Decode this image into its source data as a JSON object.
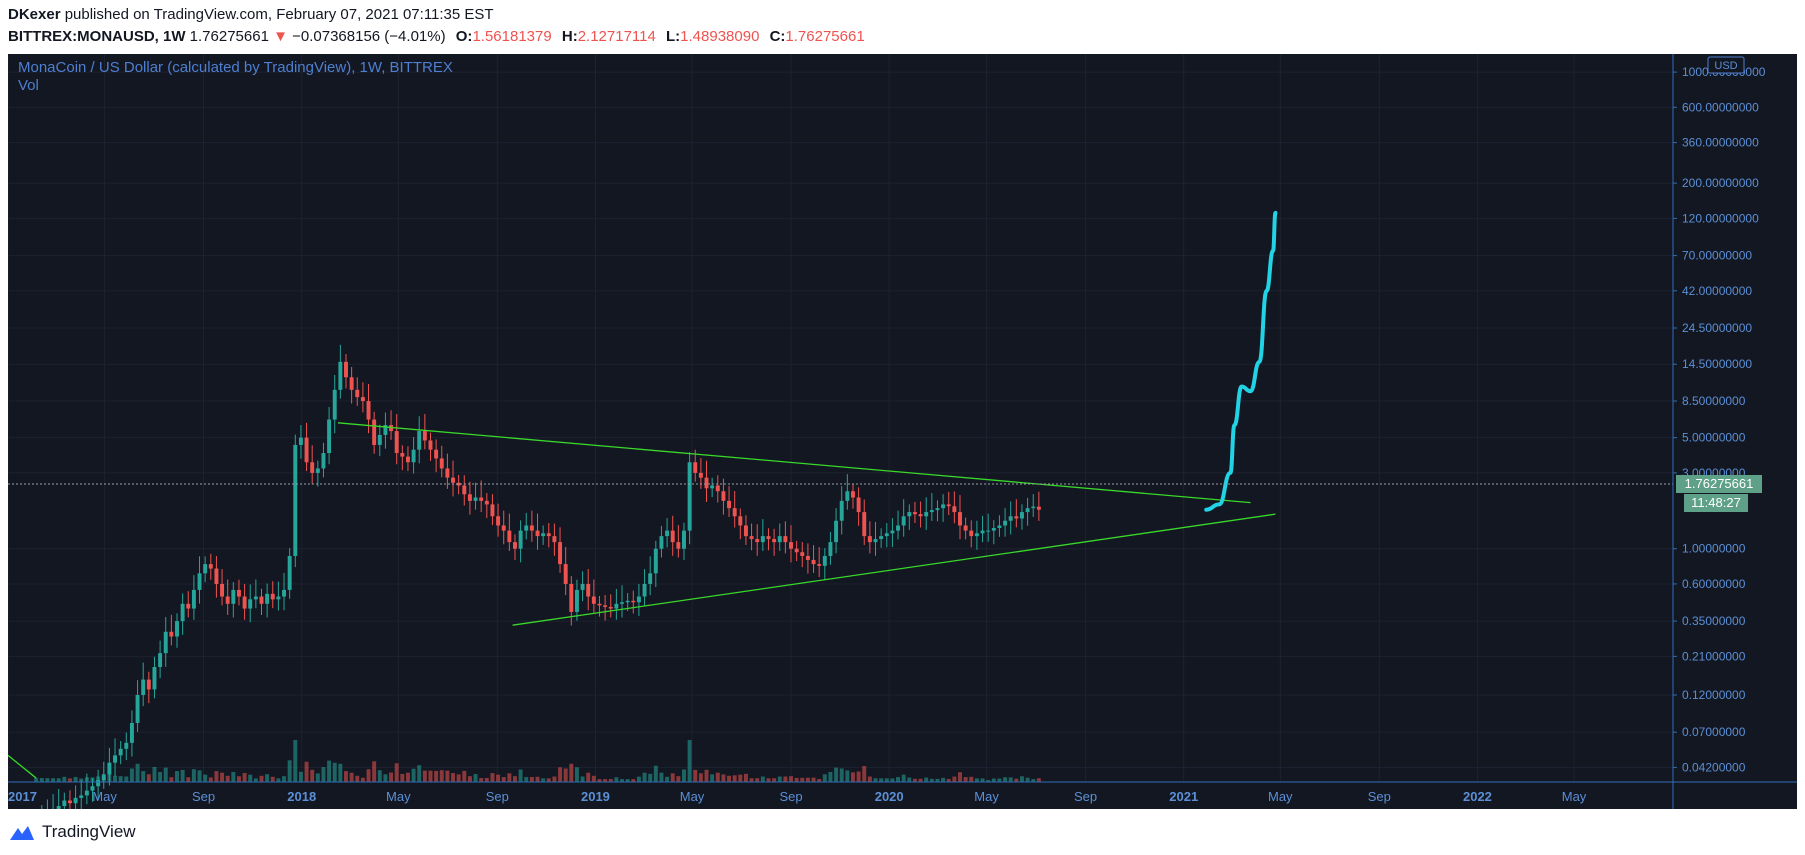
{
  "header": {
    "author": "DKexer",
    "published_text": " published on TradingView.com, February 07, 2021 07:11:35 EST",
    "symbol": "BITTREX:MONAUSD, 1W",
    "last": "1.76275661",
    "arrow": "▼",
    "change": "−0.07368156 (−4.01%)",
    "open_label": "O:",
    "open": "1.56181379",
    "high_label": "H:",
    "high": "2.12717114",
    "low_label": "L:",
    "low": "1.48938090",
    "close_label": "C:",
    "close": "1.76275661"
  },
  "legend": {
    "title": "MonaCoin / US Dollar (calculated by TradingView), 1W, BITTREX",
    "volume": "Vol"
  },
  "price_axis": {
    "currency_badge": "USD",
    "current_price": "1.76275661",
    "countdown": "11:48:27"
  },
  "footer": {
    "brand": "TradingView"
  },
  "colors": {
    "background": "#131722",
    "up": "#26a69a",
    "down": "#ef5350",
    "trendline": "#39d82a",
    "projection": "#22d3e6",
    "axis_text": "#5b8fd6",
    "legend_text": "#4e7fd0",
    "price_badge": "#5ea088"
  },
  "chart_data": {
    "type": "candlestick",
    "scale": "log",
    "title": "MonaCoin / US Dollar (calculated by TradingView), 1W, BITTREX",
    "ylim": [
      0.034,
      1300
    ],
    "y_ticks": [
      "1000.00000000",
      "600.00000000",
      "360.00000000",
      "200.00000000",
      "120.00000000",
      "70.00000000",
      "42.00000000",
      "24.50000000",
      "14.50000000",
      "8.50000000",
      "5.00000000",
      "3.00000000",
      "1.00000000",
      "0.60000000",
      "0.35000000",
      "0.21000000",
      "0.12000000",
      "0.07000000",
      "0.04200000"
    ],
    "x_ticks": [
      "2017",
      "May",
      "Sep",
      "2018",
      "May",
      "Sep",
      "2019",
      "May",
      "Sep",
      "2020",
      "May",
      "Sep",
      "2021",
      "May",
      "Sep",
      "2022",
      "May"
    ],
    "x_range": [
      "2017-01-01",
      "2022-09-01"
    ],
    "series": [
      {
        "name": "MONAUSD",
        "close": [
          0.02,
          0.021,
          0.022,
          0.023,
          0.024,
          0.026,
          0.025,
          0.027,
          0.028,
          0.03,
          0.032,
          0.035,
          0.038,
          0.045,
          0.05,
          0.055,
          0.06,
          0.08,
          0.12,
          0.15,
          0.13,
          0.18,
          0.22,
          0.3,
          0.28,
          0.35,
          0.45,
          0.42,
          0.55,
          0.7,
          0.8,
          0.75,
          0.6,
          0.5,
          0.45,
          0.55,
          0.5,
          0.42,
          0.48,
          0.5,
          0.45,
          0.52,
          0.48,
          0.5,
          0.55,
          0.9,
          4.5,
          5.0,
          3.5,
          3.0,
          3.2,
          4.0,
          6.5,
          10.0,
          15.0,
          12.0,
          10.0,
          9.0,
          8.5,
          6.5,
          4.5,
          5.2,
          6.0,
          5.5,
          4.0,
          3.8,
          3.5,
          4.2,
          5.5,
          4.8,
          4.2,
          3.7,
          3.2,
          2.8,
          2.6,
          2.5,
          2.2,
          2.0,
          2.1,
          2.0,
          1.9,
          1.6,
          1.4,
          1.3,
          1.1,
          1.0,
          1.3,
          1.4,
          1.3,
          1.2,
          1.25,
          1.2,
          1.1,
          0.8,
          0.6,
          0.4,
          0.55,
          0.6,
          0.5,
          0.45,
          0.44,
          0.43,
          0.42,
          0.45,
          0.46,
          0.47,
          0.46,
          0.5,
          0.6,
          0.7,
          1.0,
          1.2,
          1.3,
          1.1,
          1.0,
          1.3,
          3.5,
          3.0,
          2.8,
          2.4,
          2.5,
          2.3,
          2.0,
          1.8,
          1.6,
          1.4,
          1.2,
          1.15,
          1.1,
          1.2,
          1.15,
          1.1,
          1.2,
          1.1,
          1.0,
          0.95,
          0.9,
          0.85,
          0.8,
          0.78,
          0.9,
          1.1,
          1.5,
          2.0,
          2.3,
          2.1,
          1.7,
          1.2,
          1.1,
          1.15,
          1.2,
          1.25,
          1.3,
          1.4,
          1.6,
          1.7,
          1.65,
          1.6,
          1.7,
          1.75,
          1.8,
          1.9,
          1.85,
          1.7,
          1.4,
          1.3,
          1.2,
          1.25,
          1.3,
          1.3,
          1.35,
          1.4,
          1.5,
          1.6,
          1.55,
          1.7,
          1.8,
          1.84,
          1.76
        ]
      },
      {
        "name": "Vol"
      }
    ],
    "trendlines": [
      {
        "name": "upper",
        "from": [
          "2018-02-15",
          6.2
        ],
        "to": [
          "2021-03-25",
          1.95
        ]
      },
      {
        "name": "lower",
        "from": [
          "2018-09-20",
          0.33
        ],
        "to": [
          "2021-04-25",
          1.65
        ]
      },
      {
        "name": "left",
        "from": [
          "2017-01-01",
          0.05
        ],
        "to": [
          "2017-02-05",
          0.036
        ]
      }
    ],
    "projection": {
      "label": "",
      "points": [
        [
          "2021-01-29",
          1.76
        ],
        [
          "2021-02-14",
          1.9
        ],
        [
          "2021-02-28",
          3.0
        ],
        [
          "2021-03-05",
          6.0
        ],
        [
          "2021-03-14",
          10.5
        ],
        [
          "2021-03-25",
          9.8
        ],
        [
          "2021-04-05",
          15.0
        ],
        [
          "2021-04-14",
          42.0
        ],
        [
          "2021-04-22",
          75.0
        ],
        [
          "2021-04-25",
          130.0
        ]
      ]
    }
  }
}
